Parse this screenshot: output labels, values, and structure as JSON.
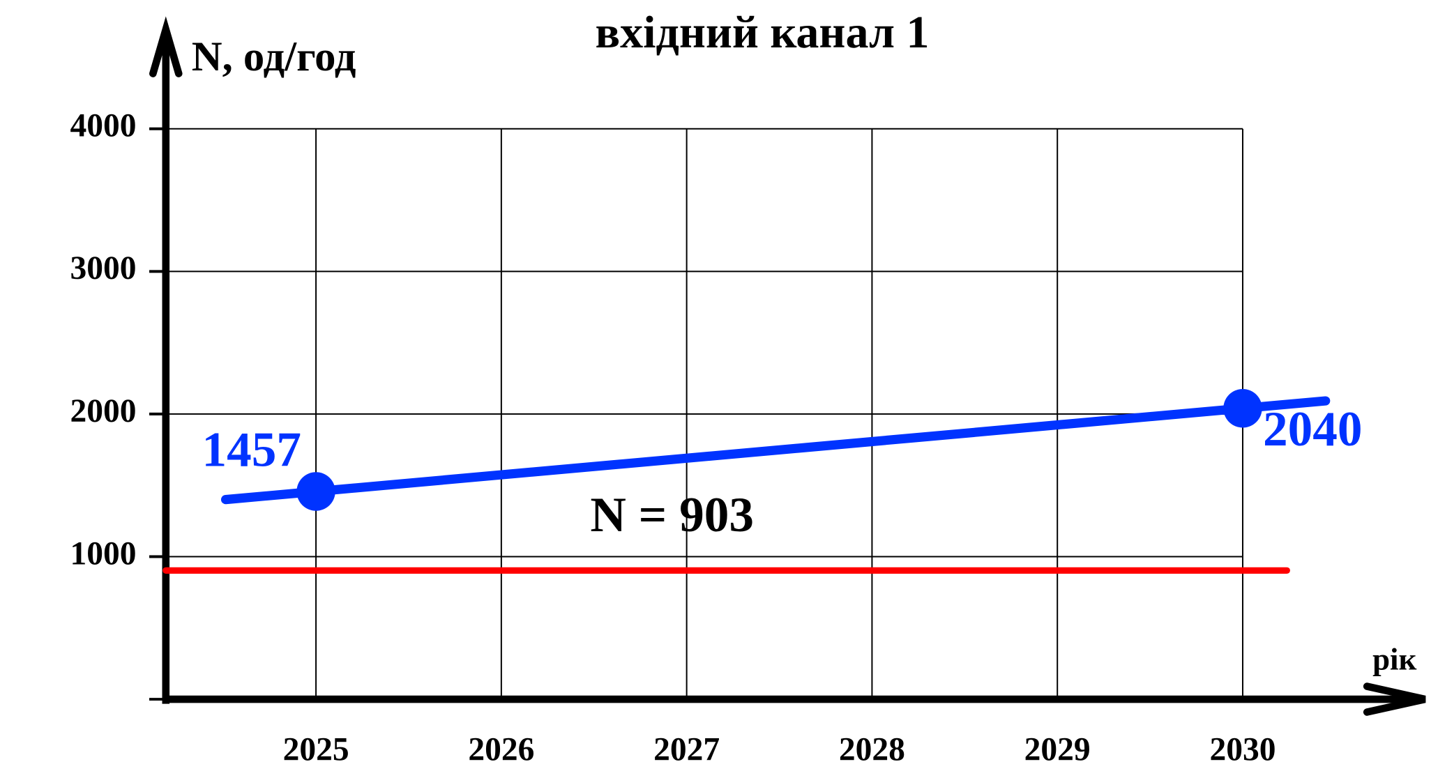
{
  "chart_data": {
    "type": "line",
    "title": "вхідний канал 1",
    "y_label": "N, од/год",
    "x_label": "рік",
    "x": [
      2025,
      2030
    ],
    "series": [
      {
        "color": "#0033ff",
        "values": [
          1457,
          2040
        ]
      }
    ],
    "xlim": [
      2024.19,
      2030
    ],
    "xticks": [
      2025,
      2026,
      2027,
      2028,
      2029,
      2030
    ],
    "ylim": [
      0,
      4000
    ],
    "yticks": [
      1000,
      2000,
      3000,
      4000
    ],
    "grid": true,
    "threshold": {
      "value": 903,
      "label": "N = 903",
      "color": "#ff0000"
    }
  }
}
